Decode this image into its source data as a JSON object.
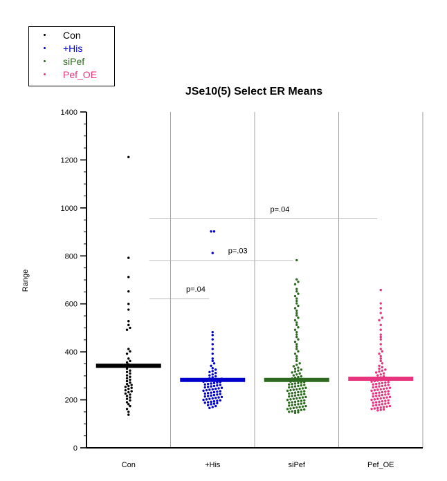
{
  "chart_data": {
    "type": "scatter",
    "title": "JSe10(5) Select ER Means",
    "xlabel": "",
    "ylabel": "Range",
    "ylim": [
      0,
      1400
    ],
    "yticks": [
      0,
      200,
      400,
      600,
      800,
      1000,
      1200,
      1400
    ],
    "ytick_labels": [
      "0",
      "200",
      "400",
      "600",
      "800",
      "1000",
      "1200",
      "1400"
    ],
    "minor_ytick_step": 50,
    "categories": [
      "Con",
      "+His",
      "siPef",
      "Pef_OE"
    ],
    "legend": {
      "position": "top-left",
      "boxed": true
    },
    "grid": {
      "vertical_category_separators": true,
      "horizontal": false
    },
    "series": [
      {
        "name": "Con",
        "color": "#000000",
        "mean": 342,
        "values": [
          1212,
          792,
          712,
          652,
          600,
          576,
          528,
          512,
          500,
          492,
          412,
          402,
          392,
          372,
          362,
          356,
          348,
          338,
          330,
          322,
          316,
          310,
          302,
          296,
          290,
          284,
          278,
          272,
          266,
          262,
          258,
          254,
          250,
          246,
          240,
          236,
          232,
          226,
          222,
          216,
          210,
          204,
          198,
          190,
          182,
          174,
          162,
          150,
          138
        ]
      },
      {
        "name": "+His",
        "color": "#0000cc",
        "mean": 283,
        "values": [
          902,
          902,
          812,
          482,
          470,
          452,
          432,
          412,
          392,
          372,
          362,
          352,
          342,
          332,
          326,
          320,
          316,
          312,
          306,
          302,
          298,
          294,
          290,
          288,
          286,
          284,
          282,
          280,
          278,
          276,
          274,
          272,
          270,
          268,
          266,
          264,
          262,
          260,
          258,
          256,
          254,
          252,
          250,
          248,
          246,
          244,
          242,
          240,
          238,
          236,
          234,
          232,
          230,
          228,
          226,
          224,
          222,
          220,
          218,
          216,
          214,
          212,
          210,
          208,
          206,
          204,
          202,
          200,
          198,
          196,
          194,
          192,
          190,
          188,
          186,
          184,
          182,
          178,
          174,
          170,
          166
        ]
      },
      {
        "name": "siPef",
        "color": "#2d6a1f",
        "mean": 283,
        "values": [
          782,
          702,
          692,
          682,
          662,
          652,
          642,
          632,
          622,
          612,
          602,
          592,
          582,
          572,
          562,
          552,
          542,
          532,
          522,
          512,
          502,
          492,
          482,
          472,
          462,
          452,
          442,
          432,
          422,
          412,
          402,
          392,
          382,
          372,
          362,
          352,
          346,
          340,
          334,
          330,
          326,
          322,
          318,
          314,
          310,
          306,
          302,
          298,
          295,
          292,
          289,
          286,
          283,
          280,
          278,
          276,
          274,
          272,
          270,
          268,
          266,
          264,
          262,
          260,
          258,
          256,
          254,
          252,
          250,
          248,
          246,
          244,
          242,
          240,
          238,
          236,
          234,
          232,
          230,
          228,
          226,
          224,
          222,
          220,
          218,
          216,
          214,
          212,
          210,
          208,
          206,
          204,
          202,
          200,
          198,
          196,
          194,
          192,
          190,
          188,
          186,
          184,
          182,
          180,
          178,
          176,
          174,
          172,
          170,
          168,
          166,
          164,
          162,
          160,
          158,
          156,
          154,
          152,
          150,
          148,
          146
        ]
      },
      {
        "name": "Pef_OE",
        "color": "#e8337e",
        "mean": 288,
        "values": [
          658,
          602,
          582,
          562,
          542,
          532,
          512,
          492,
          472,
          462,
          452,
          432,
          412,
          402,
          392,
          382,
          372,
          362,
          352,
          342,
          336,
          330,
          326,
          322,
          318,
          314,
          310,
          306,
          302,
          298,
          294,
          290,
          288,
          286,
          284,
          282,
          280,
          278,
          276,
          274,
          272,
          270,
          268,
          266,
          264,
          262,
          260,
          258,
          256,
          254,
          252,
          250,
          248,
          246,
          244,
          242,
          240,
          238,
          236,
          234,
          232,
          230,
          228,
          226,
          224,
          222,
          220,
          218,
          216,
          214,
          212,
          210,
          208,
          206,
          204,
          202,
          200,
          198,
          196,
          194,
          192,
          190,
          188,
          186,
          184,
          182,
          180,
          178,
          176,
          174,
          172,
          170,
          168,
          166,
          164,
          162,
          160,
          158,
          156
        ]
      }
    ],
    "annotations": [
      {
        "text": "p=.04",
        "y": 622,
        "from": "Con",
        "to": "+His"
      },
      {
        "text": "p=.03",
        "y": 782,
        "from": "Con",
        "to": "siPef"
      },
      {
        "text": "p=.04",
        "y": 955,
        "from": "Con",
        "to": "Pef_OE"
      }
    ]
  }
}
